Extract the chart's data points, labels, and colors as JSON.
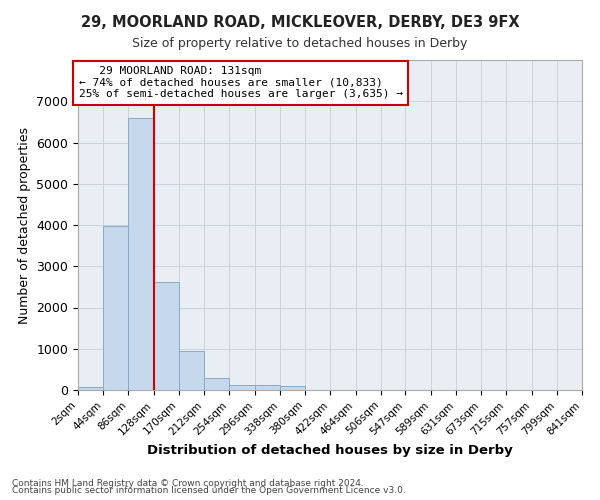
{
  "title1": "29, MOORLAND ROAD, MICKLEOVER, DERBY, DE3 9FX",
  "title2": "Size of property relative to detached houses in Derby",
  "xlabel": "Distribution of detached houses by size in Derby",
  "ylabel": "Number of detached properties",
  "bar_color": "#c6d9ec",
  "bar_edge_color": "#8aaac8",
  "grid_color": "#c8d4de",
  "background_color": "#e8eef4",
  "vline_color": "#cc0000",
  "bin_edges": [
    2,
    44,
    86,
    128,
    170,
    212,
    254,
    296,
    338,
    380,
    422,
    464,
    506,
    547,
    589,
    631,
    673,
    715,
    757,
    799,
    841
  ],
  "bin_labels": [
    "2sqm",
    "44sqm",
    "86sqm",
    "128sqm",
    "170sqm",
    "212sqm",
    "254sqm",
    "296sqm",
    "338sqm",
    "380sqm",
    "422sqm",
    "464sqm",
    "506sqm",
    "547sqm",
    "589sqm",
    "631sqm",
    "673sqm",
    "715sqm",
    "757sqm",
    "799sqm",
    "841sqm"
  ],
  "values": [
    75,
    3980,
    6590,
    2620,
    950,
    300,
    130,
    115,
    85,
    0,
    0,
    0,
    0,
    0,
    0,
    0,
    0,
    0,
    0,
    0
  ],
  "vline_x": 128,
  "annotation_title": "29 MOORLAND ROAD: 131sqm",
  "annotation_line1": "← 74% of detached houses are smaller (10,833)",
  "annotation_line2": "25% of semi-detached houses are larger (3,635) →",
  "ylim": [
    0,
    8000
  ],
  "yticks": [
    0,
    1000,
    2000,
    3000,
    4000,
    5000,
    6000,
    7000,
    8000
  ],
  "footnote1": "Contains HM Land Registry data © Crown copyright and database right 2024.",
  "footnote2": "Contains public sector information licensed under the Open Government Licence v3.0."
}
